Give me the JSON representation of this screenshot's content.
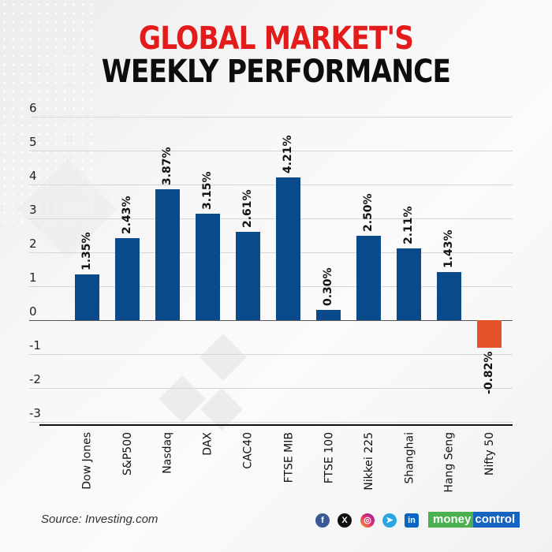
{
  "header": {
    "title_line1": "GLOBAL MARKET'S",
    "title_line2": "WEEKLY PERFORMANCE",
    "title_line1_color": "#e31b1b",
    "title_line2_color": "#0d0d0d"
  },
  "footer": {
    "source": "Source: Investing.com",
    "social_icons": [
      "facebook-icon",
      "x-icon",
      "instagram-icon",
      "telegram-icon",
      "linkedin-icon"
    ],
    "brand_part1": "money",
    "brand_part2": "control"
  },
  "chart_data": {
    "type": "bar",
    "title": "GLOBAL MARKET'S WEEKLY PERFORMANCE",
    "xlabel": "",
    "ylabel": "",
    "ylim": [
      -3,
      6
    ],
    "yticks": [
      6,
      5,
      4,
      3,
      2,
      1,
      0,
      -1,
      -2,
      -3
    ],
    "grid": true,
    "legend": null,
    "categories": [
      "Dow Jones",
      "S&P500",
      "Nasdaq",
      "DAX",
      "CAC40",
      "FTSE MIB",
      "FTSE 100",
      "Nikkei 225",
      "Shanghai",
      "Hang Seng",
      "Nifty 50"
    ],
    "values": [
      1.35,
      2.43,
      3.87,
      3.15,
      2.61,
      4.21,
      0.3,
      2.5,
      2.11,
      1.43,
      -0.82
    ],
    "data_labels": [
      "1.35%",
      "2.43%",
      "3.87%",
      "3.15%",
      "2.61%",
      "4.21%",
      "0.30%",
      "2.50%",
      "2.11%",
      "1.43%",
      "-0.82%"
    ],
    "colors": {
      "positive": "#0a4a8a",
      "negative": "#e4542a"
    },
    "annotations": [
      "Source: Investing.com"
    ]
  }
}
